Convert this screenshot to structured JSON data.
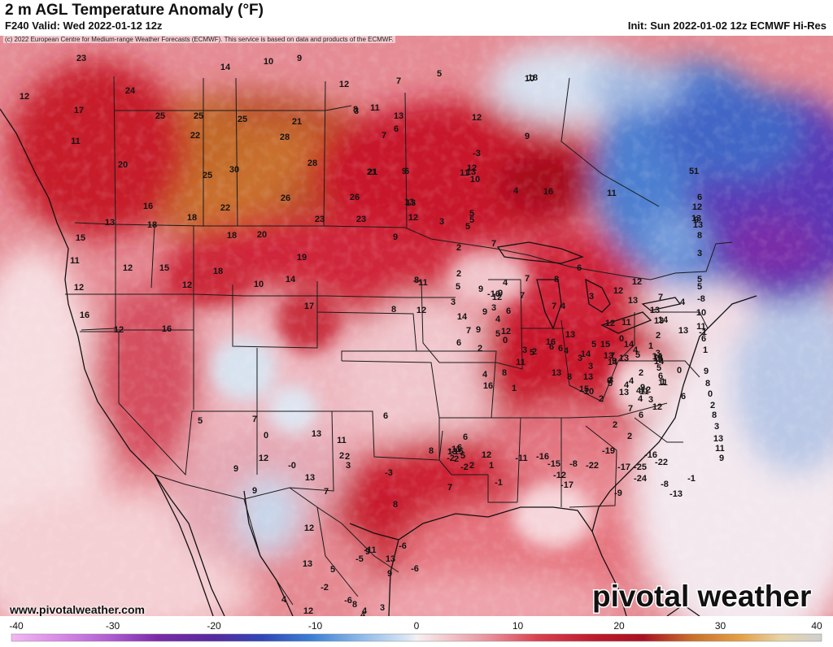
{
  "header": {
    "title": "2 m AGL Temperature Anomaly (°F)",
    "valid": "F240 Valid: Wed 2022-01-12 12z",
    "init": "Init: Sun 2022-01-02 12z ECMWF Hi-Res",
    "copyright": "(c) 2022 European Centre for Medium-range Weather Forecasts (ECMWF). This service is based on data and products of the ECMWF."
  },
  "footer": {
    "url": "www.pivotalweather.com",
    "logo_text": "pivotal weather"
  },
  "colorbar": {
    "min": -40,
    "max": 40,
    "ticks": [
      "-40",
      "-30",
      "-20",
      "-10",
      "0",
      "10",
      "20",
      "30",
      "40"
    ],
    "unit": "°F"
  },
  "colors": {
    "warm_strong": "#c0142a",
    "warm_extreme": "#c8702a",
    "neutral": "#f7f1f1",
    "cold_moderate": "#3f6fc8",
    "cold_extreme": "#7030b0"
  },
  "map_values": [
    "23",
    "14",
    "9",
    "12",
    "24",
    "17",
    "25",
    "25",
    "25",
    "22",
    "21",
    "28",
    "11",
    "20",
    "25",
    "30",
    "28",
    "21",
    "26",
    "26",
    "16",
    "22",
    "23",
    "23",
    "13",
    "13",
    "18",
    "18",
    "18",
    "20",
    "15",
    "19",
    "11",
    "12",
    "15",
    "18",
    "12",
    "10",
    "14",
    "17",
    "12",
    "16",
    "12",
    "16",
    "7",
    "5",
    "18",
    "11",
    "12",
    "12",
    "6",
    "3",
    "13",
    "7",
    "9",
    "11",
    "9",
    "16",
    "11",
    "6",
    "21",
    "5",
    "13",
    "12",
    "9",
    "2",
    "5",
    "7",
    "8",
    "3",
    "8",
    "9",
    "11",
    "6",
    "12",
    "7",
    "8",
    "6",
    "3",
    "4",
    "9",
    "7",
    "12",
    "12",
    "4",
    "3",
    "16",
    "13",
    "13",
    "7",
    "13",
    "6",
    "14",
    "15",
    "13",
    "2",
    "13",
    "14",
    "5",
    "12",
    "11",
    "8",
    "13",
    "7",
    "13",
    "14",
    "13",
    "14",
    "14",
    "4",
    "0",
    "3",
    "5",
    "16",
    "2",
    "0",
    "7",
    "8",
    "10",
    "13",
    "10",
    "8",
    "5",
    "-3",
    "4",
    "10",
    "5",
    "12",
    "9",
    "7",
    "-16",
    "3",
    "2",
    "9",
    "12",
    "5",
    "1",
    "4",
    "6",
    "3",
    "4",
    "5",
    "2",
    "1",
    "11",
    "15",
    "4",
    "2",
    "2",
    "14",
    "10",
    "4",
    "12",
    "14",
    "6",
    "4",
    "13",
    "3",
    "5",
    "0",
    "11",
    "1",
    "1",
    "4",
    "3",
    "6",
    "4",
    "12",
    "13",
    "12",
    "3",
    "14",
    "9",
    "5",
    "2",
    "5",
    "4",
    "2",
    "7",
    "6",
    "11",
    "0",
    "-3",
    "6",
    "1",
    "5",
    "12",
    "13",
    "9",
    "13",
    "6",
    "8",
    "3",
    "5",
    "5",
    "-8",
    "10",
    "11",
    "-1",
    "6",
    "1",
    "9",
    "8",
    "0",
    "2",
    "8",
    "3",
    "13",
    "11",
    "9",
    "7",
    "5",
    "13",
    "13",
    "12",
    "0",
    "-0",
    "11",
    "2",
    "3",
    "6",
    "9",
    "9",
    "12",
    "5",
    "8",
    "-5",
    "-11",
    "7",
    "8",
    "-6",
    "9",
    "9",
    "13",
    "12",
    "12",
    "4",
    "-2",
    "-6",
    "4",
    "13",
    "2",
    "-3",
    "4",
    "3",
    "-6",
    "8",
    "-2",
    "7",
    "-2",
    "12",
    "-15",
    "-11",
    "6",
    "5",
    "2",
    "13",
    "6",
    "2",
    "1",
    "-1",
    "-11",
    "-16",
    "-15",
    "-12",
    "-8",
    "-17",
    "-22",
    "-19",
    "-17",
    "-25",
    "-16",
    "-22",
    "-24",
    "-8",
    "-13",
    "-1",
    "-9",
    "-12",
    "6",
    "5",
    "13",
    "2",
    "16",
    "2",
    "0",
    "11",
    "8"
  ]
}
